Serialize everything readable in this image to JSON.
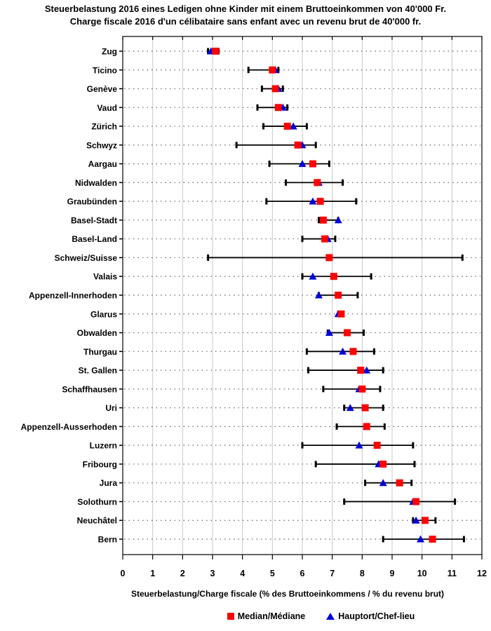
{
  "title_line1": "Steuerbelastung 2016 eines Ledigen ohne Kinder mit einem Bruttoeinkommen von 40'000 Fr.",
  "title_line2": "Charge fiscale 2016 d'un célibataire sans enfant avec un revenu brut de 40'000 fr.",
  "axis": {
    "xlabel": "Steuerbelastung/Charge fiscale (% des Bruttoeinkommens / % du revenu brut)"
  },
  "colors": {
    "median": "#ff0000",
    "hauptort": "#0000dd",
    "grid": "#c8c8c8",
    "dotted_row_line": "#666666",
    "axis_line": "#000000",
    "background": "#ffffff"
  },
  "chart_data": {
    "type": "scatter",
    "subtype": "horizontal-range-with-markers",
    "orientation": "horizontal",
    "title": "Steuerbelastung 2016 eines Ledigen ohne Kinder mit einem Bruttoeinkommen von 40'000 Fr. / Charge fiscale 2016 d'un célibataire sans enfant avec un revenu brut de 40'000 fr.",
    "xlabel": "Steuerbelastung/Charge fiscale (% des Bruttoeinkommens / % du revenu brut)",
    "xlim": [
      0,
      12
    ],
    "x_ticks": [
      0,
      1,
      2,
      3,
      4,
      5,
      6,
      7,
      8,
      9,
      10,
      11,
      12
    ],
    "grid": "vertical-solid-plus-dotted-row-lines",
    "legend_position": "bottom",
    "series": [
      {
        "name": "Median/Médiane",
        "field": "median",
        "marker": "square",
        "color": "#ff0000"
      },
      {
        "name": "Hauptort/Chef-lieu",
        "field": "hauptort",
        "marker": "triangle-up",
        "color": "#0000dd"
      }
    ],
    "rows": [
      {
        "canton": "Zug",
        "min": 2.85,
        "max": 3.2,
        "median": 3.1,
        "hauptort": 2.95
      },
      {
        "canton": "Ticino",
        "min": 4.2,
        "max": 5.2,
        "median": 5.0,
        "hauptort": 5.1
      },
      {
        "canton": "Genève",
        "min": 4.65,
        "max": 5.35,
        "median": 5.1,
        "hauptort": 5.2
      },
      {
        "canton": "Vaud",
        "min": 4.5,
        "max": 5.5,
        "median": 5.2,
        "hauptort": 5.35
      },
      {
        "canton": "Zürich",
        "min": 4.7,
        "max": 6.15,
        "median": 5.5,
        "hauptort": 5.7
      },
      {
        "canton": "Schwyz",
        "min": 3.8,
        "max": 6.45,
        "median": 5.85,
        "hauptort": 6.0
      },
      {
        "canton": "Aargau",
        "min": 4.9,
        "max": 6.9,
        "median": 6.35,
        "hauptort": 6.0
      },
      {
        "canton": "Nidwalden",
        "min": 5.45,
        "max": 7.35,
        "median": 6.5,
        "hauptort": 6.55
      },
      {
        "canton": "Graubünden",
        "min": 4.8,
        "max": 7.8,
        "median": 6.6,
        "hauptort": 6.35
      },
      {
        "canton": "Basel-Stadt",
        "min": 6.55,
        "max": 7.2,
        "median": 6.7,
        "hauptort": 7.2
      },
      {
        "canton": "Basel-Land",
        "min": 6.0,
        "max": 7.1,
        "median": 6.75,
        "hauptort": 6.85
      },
      {
        "canton": "Schweiz/Suisse",
        "min": 2.85,
        "max": 11.35,
        "median": 6.9,
        "hauptort": null
      },
      {
        "canton": "Valais",
        "min": 6.0,
        "max": 8.3,
        "median": 7.05,
        "hauptort": 6.35
      },
      {
        "canton": "Appenzell-Innerhoden",
        "min": 6.55,
        "max": 7.85,
        "median": 7.2,
        "hauptort": 6.55
      },
      {
        "canton": "Glarus",
        "min": 7.2,
        "max": 7.35,
        "median": 7.3,
        "hauptort": 7.2
      },
      {
        "canton": "Obwalden",
        "min": 6.85,
        "max": 8.05,
        "median": 7.5,
        "hauptort": 6.9
      },
      {
        "canton": "Thurgau",
        "min": 6.15,
        "max": 8.4,
        "median": 7.7,
        "hauptort": 7.35
      },
      {
        "canton": "St. Gallen",
        "min": 6.2,
        "max": 8.7,
        "median": 7.95,
        "hauptort": 8.15
      },
      {
        "canton": "Schaffhausen",
        "min": 6.7,
        "max": 8.6,
        "median": 8.0,
        "hauptort": 7.9
      },
      {
        "canton": "Uri",
        "min": 7.4,
        "max": 8.7,
        "median": 8.1,
        "hauptort": 7.6
      },
      {
        "canton": "Appenzell-Ausserhoden",
        "min": 7.15,
        "max": 8.75,
        "median": 8.15,
        "hauptort": 8.15
      },
      {
        "canton": "Luzern",
        "min": 6.0,
        "max": 9.7,
        "median": 8.5,
        "hauptort": 7.9
      },
      {
        "canton": "Fribourg",
        "min": 6.45,
        "max": 9.75,
        "median": 8.7,
        "hauptort": 8.55
      },
      {
        "canton": "Jura",
        "min": 8.1,
        "max": 9.65,
        "median": 9.25,
        "hauptort": 8.7
      },
      {
        "canton": "Solothurn",
        "min": 7.4,
        "max": 11.1,
        "median": 9.8,
        "hauptort": 9.7
      },
      {
        "canton": "Neuchâtel",
        "min": 9.7,
        "max": 10.45,
        "median": 10.1,
        "hauptort": 9.8
      },
      {
        "canton": "Bern",
        "min": 8.7,
        "max": 11.4,
        "median": 10.35,
        "hauptort": 9.95
      }
    ]
  }
}
